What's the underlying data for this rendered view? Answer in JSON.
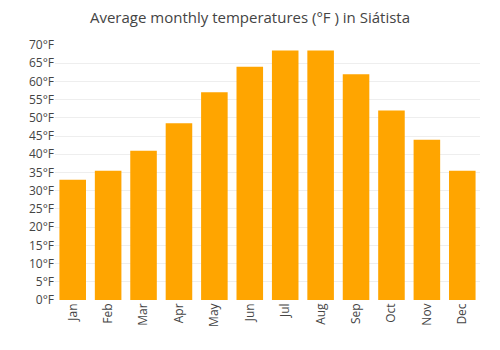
{
  "chart_data": {
    "type": "bar",
    "title": "Average monthly temperatures (°F ) in Siátista",
    "categories": [
      "Jan",
      "Feb",
      "Mar",
      "Apr",
      "May",
      "Jun",
      "Jul",
      "Aug",
      "Sep",
      "Oct",
      "Nov",
      "Dec"
    ],
    "values": [
      33,
      35.5,
      41,
      48.5,
      57,
      64,
      68.5,
      68.5,
      62,
      52,
      44,
      35.5
    ],
    "color": "#FFA500",
    "ylim": [
      0,
      70
    ],
    "yticks": [
      {
        "value": 0,
        "label": "0°F"
      },
      {
        "value": 5,
        "label": "5°F"
      },
      {
        "value": 10,
        "label": "10°F"
      },
      {
        "value": 15,
        "label": "15°F"
      },
      {
        "value": 20,
        "label": "20°F"
      },
      {
        "value": 25,
        "label": "25°F"
      },
      {
        "value": 30,
        "label": "30°F"
      },
      {
        "value": 35,
        "label": "35°F"
      },
      {
        "value": 40,
        "label": "40°F"
      },
      {
        "value": 45,
        "label": "45°F"
      },
      {
        "value": 50,
        "label": "50°F"
      },
      {
        "value": 55,
        "label": "55°F"
      },
      {
        "value": 60,
        "label": "60°F"
      },
      {
        "value": 65,
        "label": "65°F"
      },
      {
        "value": 70,
        "label": "70°F"
      }
    ],
    "grid": true
  }
}
